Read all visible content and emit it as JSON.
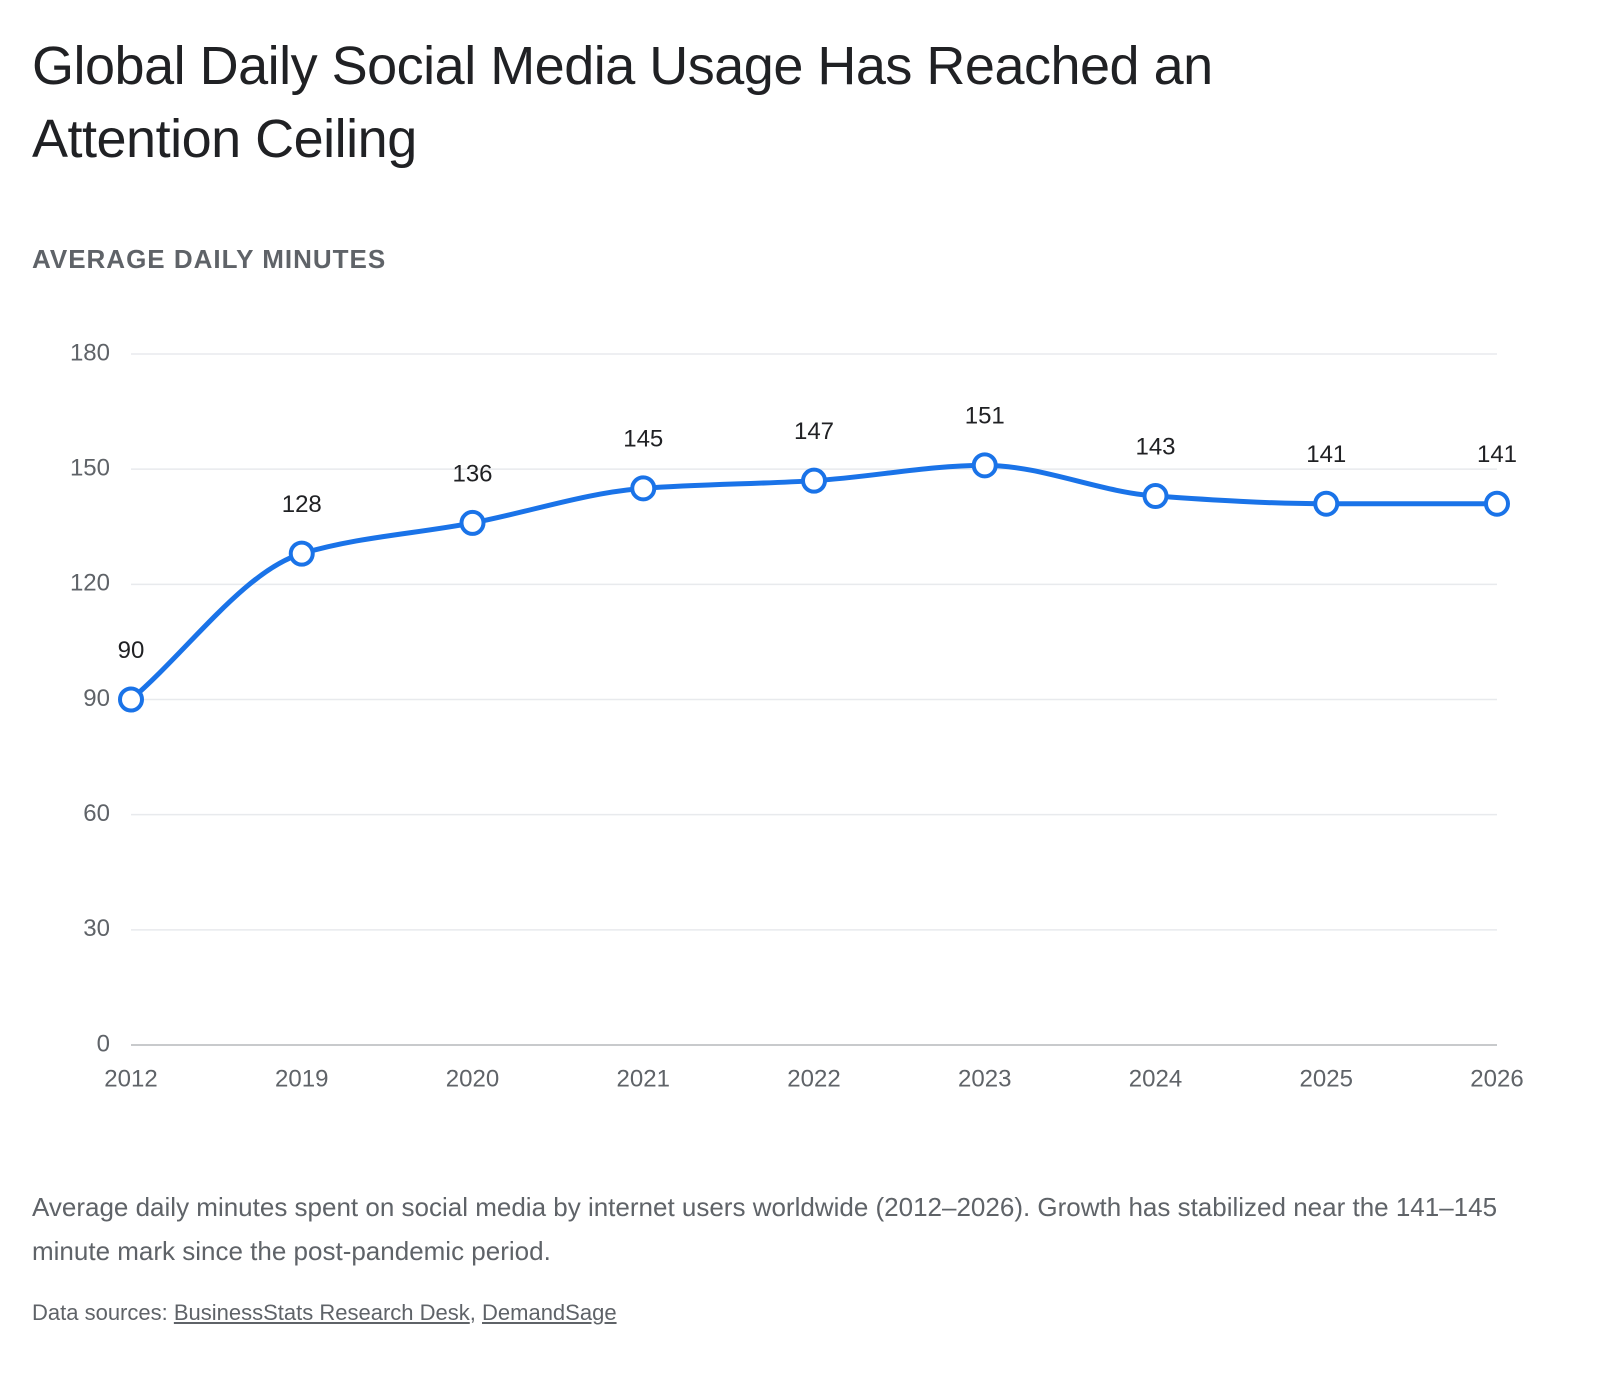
{
  "chart_data": {
    "type": "line",
    "title": "Global Daily Social Media Usage Has Reached an Attention Ceiling",
    "y_label": "AVERAGE DAILY MINUTES",
    "categories": [
      "2012",
      "2019",
      "2020",
      "2021",
      "2022",
      "2023",
      "2024",
      "2025",
      "2026"
    ],
    "series": [
      {
        "name": "Average daily minutes",
        "color": "#1a73e8",
        "values": [
          90,
          128,
          136,
          145,
          147,
          151,
          143,
          141,
          141
        ]
      }
    ],
    "ylim": [
      0,
      180
    ],
    "yticks": [
      0,
      30,
      60,
      90,
      120,
      150,
      180
    ],
    "grid": true,
    "data_labels": true,
    "legend": false,
    "caption": "Average daily minutes spent on social media by internet users worldwide (2012–2026). Growth has stabilized near the 141–145 minute mark since the post-pandemic period.",
    "sources_label": "Data sources:",
    "sources": [
      "BusinessStats Research Desk",
      "DemandSage"
    ],
    "sources_separator": ","
  }
}
